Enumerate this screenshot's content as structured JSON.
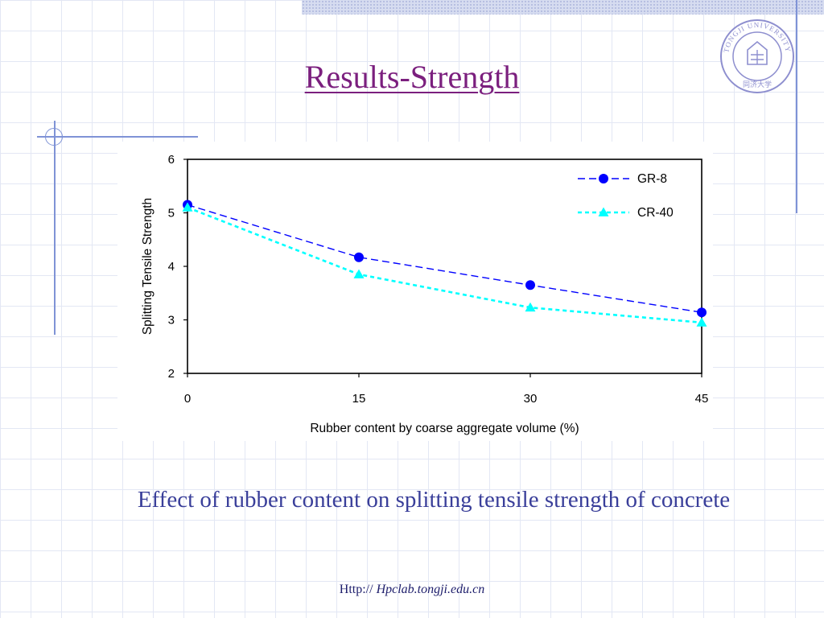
{
  "slide": {
    "title": "Results-Strength",
    "caption": "Effect of rubber content on splitting tensile strength of concrete",
    "footer_prefix": "Http://",
    "footer_url": "Hpclab.tongji.edu.cn",
    "logo_text": "TONGJI UNIVERSITY",
    "logo_chinese": "同济大学"
  },
  "colors": {
    "title": "#7b1f7e",
    "caption": "#3a3f9a",
    "gr8": "#0000ff",
    "cr40": "#00ffff",
    "decor": "#7f93d6"
  },
  "chart_data": {
    "type": "line",
    "title": "",
    "xlabel": "Rubber content by coarse aggregate volume (%)",
    "ylabel": "Splitting Tensile Strength",
    "x": [
      0,
      15,
      30,
      45
    ],
    "xlim": [
      0,
      45
    ],
    "ylim": [
      2,
      6
    ],
    "xticks": [
      0,
      15,
      30,
      45
    ],
    "yticks": [
      2,
      3,
      4,
      5,
      6
    ],
    "grid": false,
    "legend_position": "top-right",
    "series": [
      {
        "name": "GR-8",
        "values": [
          5.15,
          4.17,
          3.65,
          3.14
        ],
        "marker": "circle",
        "line": "dashed",
        "color": "#0000ff"
      },
      {
        "name": "CR-40",
        "values": [
          5.1,
          3.85,
          3.23,
          2.95
        ],
        "marker": "triangle",
        "line": "dotted",
        "color": "#00ffff"
      }
    ]
  }
}
